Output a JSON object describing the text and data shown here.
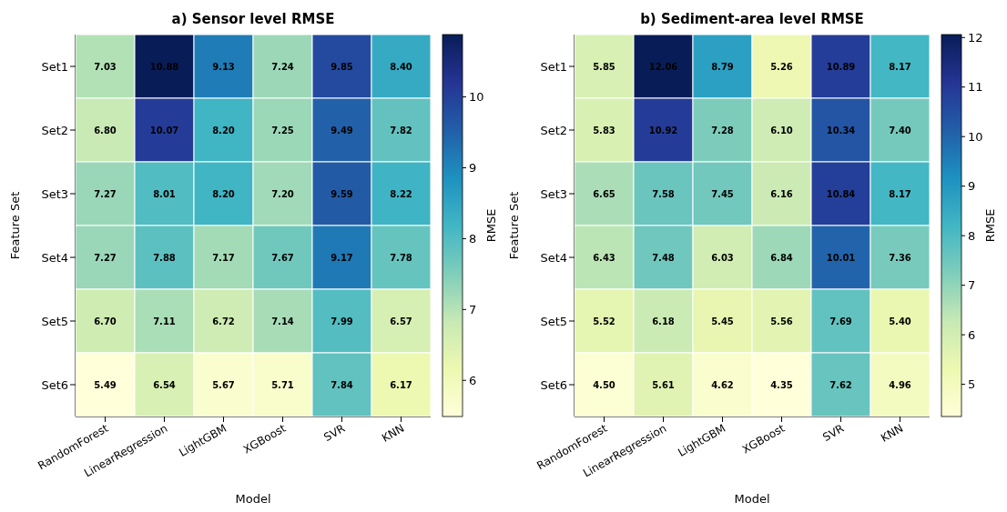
{
  "chart_data": [
    {
      "type": "heatmap",
      "title": "a) Sensor level RMSE",
      "xlabel": "Model",
      "ylabel": "Feature Set",
      "clabel": "RMSE",
      "categories": [
        "RandomForest",
        "LinearRegression",
        "LightGBM",
        "XGBoost",
        "SVR",
        "KNN"
      ],
      "y_categories": [
        "Set1",
        "Set2",
        "Set3",
        "Set4",
        "Set5",
        "Set6"
      ],
      "cells": [
        [
          7.03,
          10.88,
          9.13,
          7.24,
          9.85,
          8.4
        ],
        [
          6.8,
          10.07,
          8.2,
          7.25,
          9.49,
          7.82
        ],
        [
          7.27,
          8.01,
          8.2,
          7.2,
          9.59,
          8.22
        ],
        [
          7.27,
          7.88,
          7.17,
          7.67,
          9.17,
          7.78
        ],
        [
          6.7,
          7.11,
          6.72,
          7.14,
          7.99,
          6.57
        ],
        [
          5.49,
          6.54,
          5.67,
          5.71,
          7.84,
          6.17
        ]
      ],
      "cell_labels": [
        [
          "7.03",
          "10.88",
          "9.13",
          "7.24",
          "9.85",
          "8.40"
        ],
        [
          "6.80",
          "10.07",
          "8.20",
          "7.25",
          "9.49",
          "7.82"
        ],
        [
          "7.27",
          "8.01",
          "8.20",
          "7.20",
          "9.59",
          "8.22"
        ],
        [
          "7.27",
          "7.88",
          "7.17",
          "7.67",
          "9.17",
          "7.78"
        ],
        [
          "6.70",
          "7.11",
          "6.72",
          "7.14",
          "7.99",
          "6.57"
        ],
        [
          "5.49",
          "6.54",
          "5.67",
          "5.71",
          "7.84",
          "6.17"
        ]
      ],
      "clim": [
        5.49,
        10.88
      ],
      "cticks": [
        6,
        7,
        8,
        9,
        10
      ]
    },
    {
      "type": "heatmap",
      "title": "b) Sediment-area level RMSE",
      "xlabel": "Model",
      "ylabel": "Feature Set",
      "clabel": "RMSE",
      "categories": [
        "RandomForest",
        "LinearRegression",
        "LightGBM",
        "XGBoost",
        "SVR",
        "KNN"
      ],
      "y_categories": [
        "Set1",
        "Set2",
        "Set3",
        "Set4",
        "Set5",
        "Set6"
      ],
      "cells": [
        [
          5.85,
          12.06,
          8.79,
          5.26,
          10.89,
          8.17
        ],
        [
          5.83,
          10.92,
          7.28,
          6.1,
          10.34,
          7.4
        ],
        [
          6.65,
          7.58,
          7.45,
          6.16,
          10.84,
          8.17
        ],
        [
          6.43,
          7.48,
          6.03,
          6.84,
          10.01,
          7.36
        ],
        [
          5.52,
          6.18,
          5.45,
          5.56,
          7.69,
          5.4
        ],
        [
          4.5,
          5.61,
          4.62,
          4.35,
          7.62,
          4.96
        ]
      ],
      "cell_labels": [
        [
          "5.85",
          "12.06",
          "8.79",
          "5.26",
          "10.89",
          "8.17"
        ],
        [
          "5.83",
          "10.92",
          "7.28",
          "6.10",
          "10.34",
          "7.40"
        ],
        [
          "6.65",
          "7.58",
          "7.45",
          "6.16",
          "10.84",
          "8.17"
        ],
        [
          "6.43",
          "7.48",
          "6.03",
          "6.84",
          "10.01",
          "7.36"
        ],
        [
          "5.52",
          "6.18",
          "5.45",
          "5.56",
          "7.69",
          "5.40"
        ],
        [
          "4.50",
          "5.61",
          "4.62",
          "4.35",
          "7.62",
          "4.96"
        ]
      ],
      "clim": [
        4.35,
        12.06
      ],
      "cticks": [
        5,
        6,
        7,
        8,
        9,
        10,
        11,
        12
      ]
    }
  ]
}
